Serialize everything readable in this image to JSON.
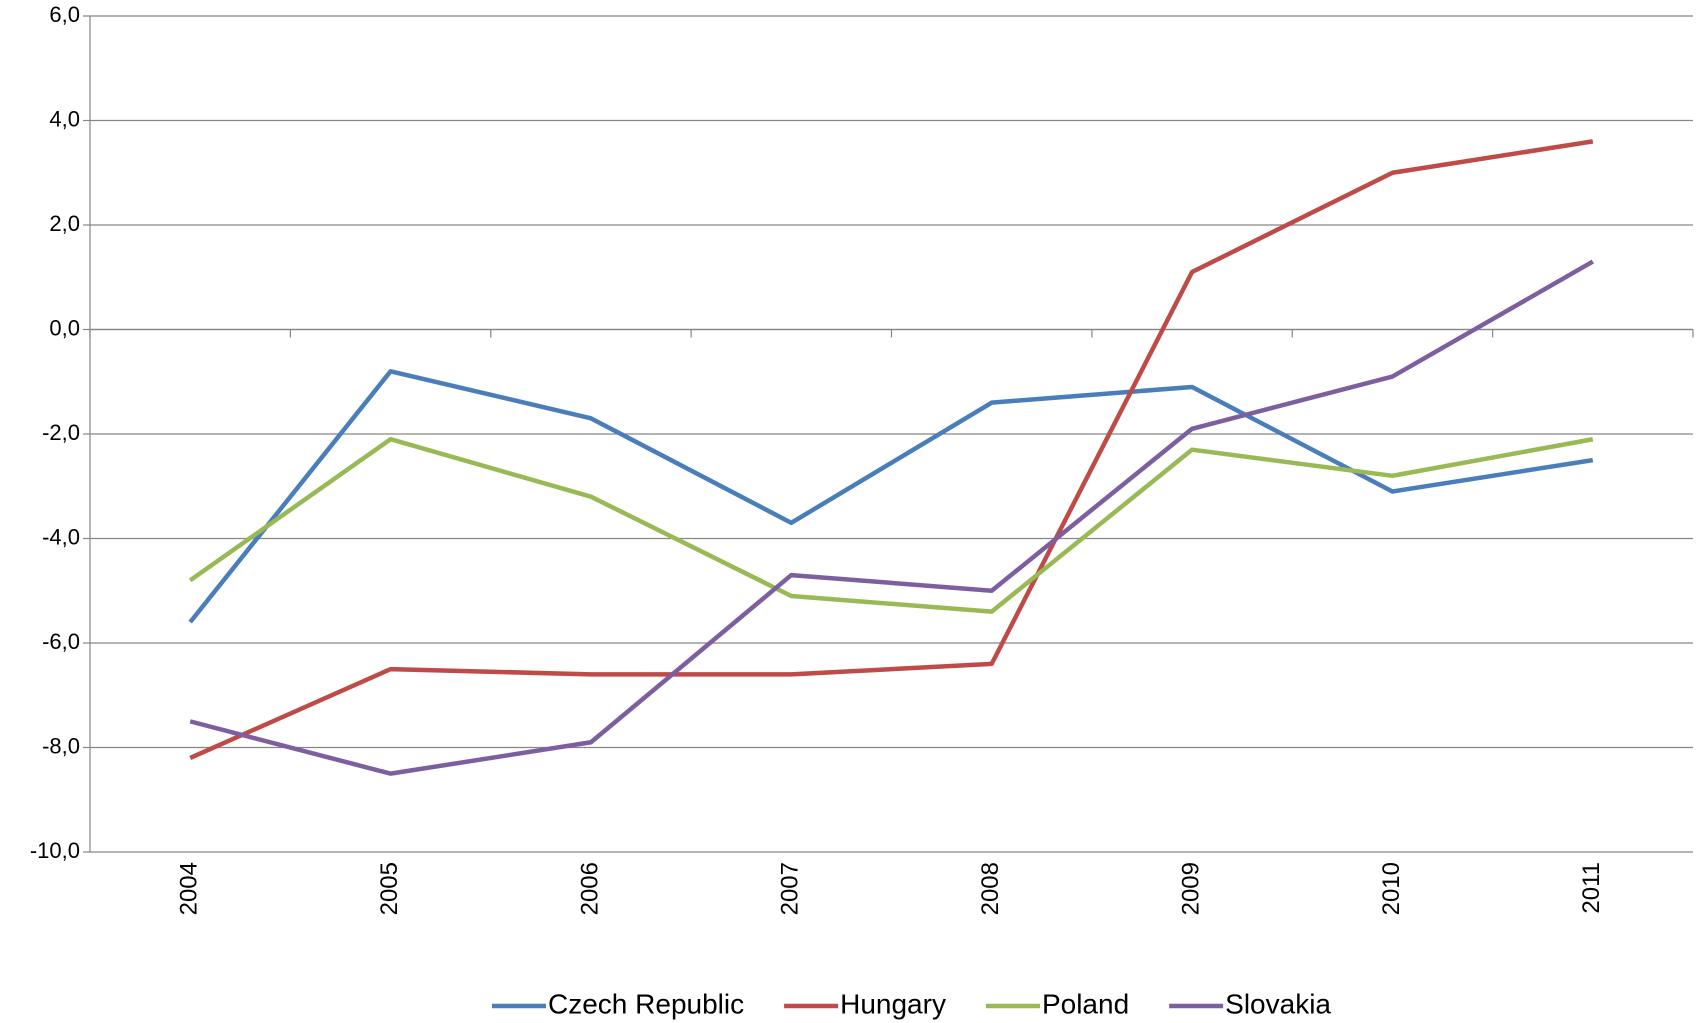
{
  "chart_data": {
    "type": "line",
    "categories": [
      "2004",
      "2005",
      "2006",
      "2007",
      "2008",
      "2009",
      "2010",
      "2011"
    ],
    "series": [
      {
        "name": "Czech Republic",
        "color": "#4a7ebb",
        "values": [
          -5.6,
          -0.8,
          -1.7,
          -3.7,
          -1.4,
          -1.1,
          -3.1,
          -2.5
        ]
      },
      {
        "name": "Hungary",
        "color": "#be4b48",
        "values": [
          -8.2,
          -6.5,
          -6.6,
          -6.6,
          -6.4,
          1.1,
          3.0,
          3.6
        ]
      },
      {
        "name": "Poland",
        "color": "#98b954",
        "values": [
          -4.8,
          -2.1,
          -3.2,
          -5.1,
          -5.4,
          -2.3,
          -2.8,
          -2.1
        ]
      },
      {
        "name": "Slovakia",
        "color": "#7d5fa0",
        "values": [
          -7.5,
          -8.5,
          -7.9,
          -4.7,
          -5.0,
          -1.9,
          -0.9,
          1.3
        ]
      }
    ],
    "ylim": [
      -10,
      6
    ],
    "yticks": [
      {
        "value": -10,
        "label": "-10,0"
      },
      {
        "value": -8,
        "label": "-8,0"
      },
      {
        "value": -6,
        "label": "-6,0"
      },
      {
        "value": -4,
        "label": "-4,0"
      },
      {
        "value": -2,
        "label": "-2,0"
      },
      {
        "value": 0,
        "label": "0,0"
      },
      {
        "value": 2,
        "label": "2,0"
      },
      {
        "value": 4,
        "label": "4,0"
      },
      {
        "value": 6,
        "label": "6,0"
      }
    ],
    "grid": true,
    "legend": "bottom"
  }
}
